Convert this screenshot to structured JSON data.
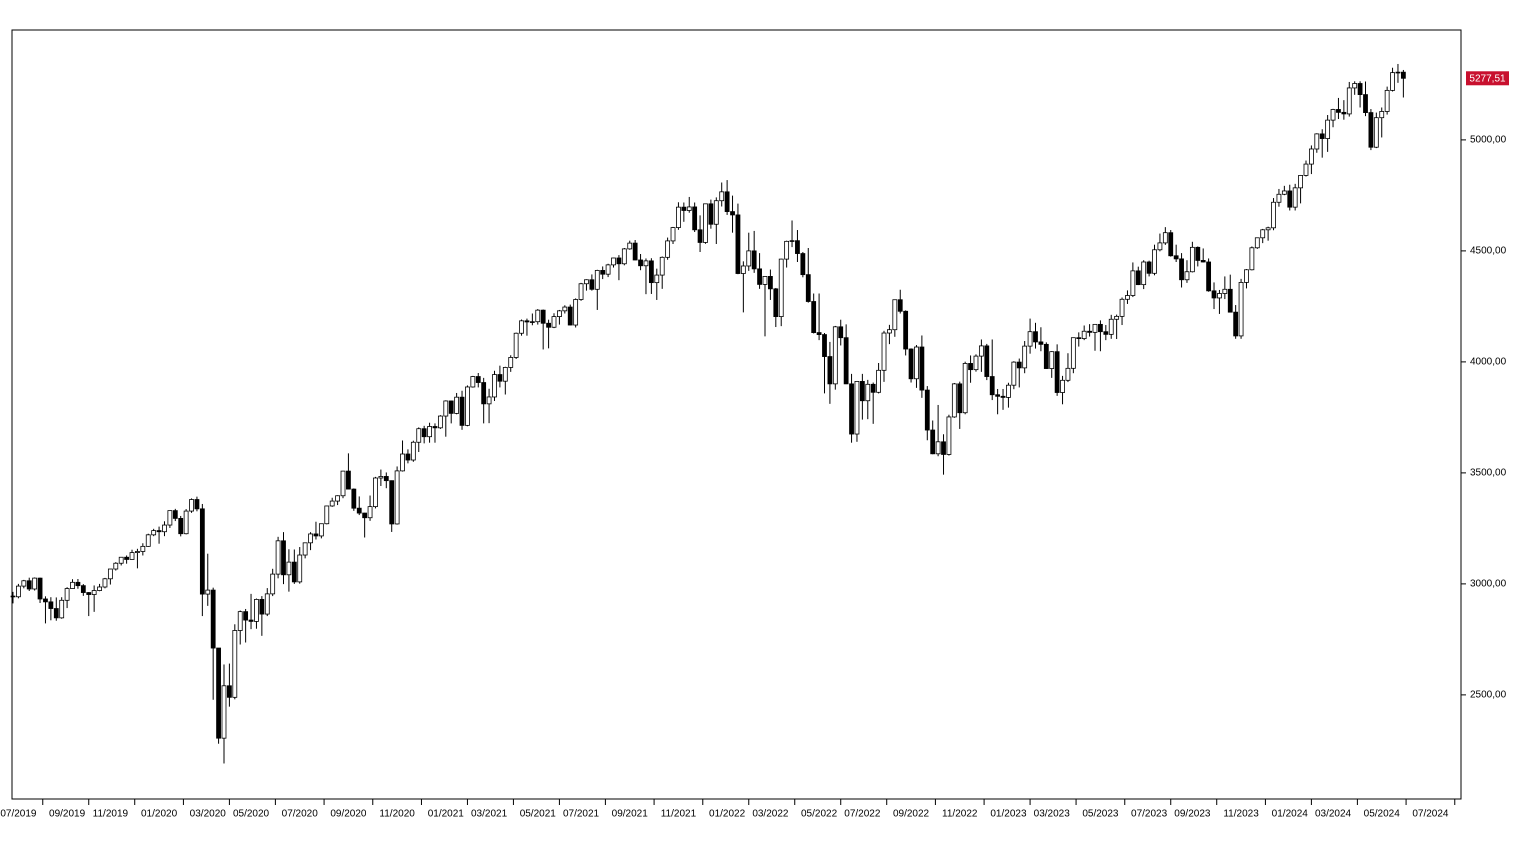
{
  "chart_data": {
    "type": "candlestick",
    "categories": [
      null,
      "07/2019",
      null,
      null,
      null,
      null,
      null,
      null,
      null,
      null,
      "09/2019",
      null,
      null,
      null,
      null,
      null,
      null,
      null,
      "11/2019",
      null,
      null,
      null,
      null,
      null,
      null,
      null,
      null,
      "01/2020",
      null,
      null,
      null,
      null,
      null,
      null,
      null,
      null,
      "03/2020",
      null,
      null,
      null,
      null,
      null,
      null,
      null,
      "05/2020",
      null,
      null,
      null,
      null,
      null,
      null,
      null,
      null,
      "07/2020",
      null,
      null,
      null,
      null,
      null,
      null,
      null,
      null,
      "09/2020",
      null,
      null,
      null,
      null,
      null,
      null,
      null,
      null,
      "11/2020",
      null,
      null,
      null,
      null,
      null,
      null,
      null,
      null,
      "01/2021",
      null,
      null,
      null,
      null,
      null,
      null,
      null,
      "03/2021",
      null,
      null,
      null,
      null,
      null,
      null,
      null,
      null,
      "05/2021",
      null,
      null,
      null,
      null,
      null,
      null,
      null,
      "07/2021",
      null,
      null,
      null,
      null,
      null,
      null,
      null,
      null,
      "09/2021",
      null,
      null,
      null,
      null,
      null,
      null,
      null,
      null,
      "11/2021",
      null,
      null,
      null,
      null,
      null,
      null,
      null,
      null,
      "01/2022",
      null,
      null,
      null,
      null,
      null,
      null,
      null,
      "03/2022",
      null,
      null,
      null,
      null,
      null,
      null,
      null,
      null,
      "05/2022",
      null,
      null,
      null,
      null,
      null,
      null,
      null,
      "07/2022",
      null,
      null,
      null,
      null,
      null,
      null,
      null,
      null,
      "09/2022",
      null,
      null,
      null,
      null,
      null,
      null,
      null,
      null,
      "11/2022",
      null,
      null,
      null,
      null,
      null,
      null,
      null,
      null,
      "01/2023",
      null,
      null,
      null,
      null,
      null,
      null,
      null,
      "03/2023",
      null,
      null,
      null,
      null,
      null,
      null,
      null,
      null,
      "05/2023",
      null,
      null,
      null,
      null,
      null,
      null,
      null,
      null,
      "07/2023",
      null,
      null,
      null,
      null,
      null,
      null,
      null,
      "09/2023",
      null,
      null,
      null,
      null,
      null,
      null,
      null,
      null,
      "11/2023",
      null,
      null,
      null,
      null,
      null,
      null,
      null,
      null,
      "01/2024",
      null,
      null,
      null,
      null,
      null,
      null,
      null,
      "03/2024",
      null,
      null,
      null,
      null,
      null,
      null,
      null,
      null,
      "05/2024",
      null,
      null,
      null,
      null
    ],
    "x_axis_end_label": "07/2024",
    "open": [
      2945,
      2942,
      2990,
      3014,
      2977,
      3026,
      2932,
      2919,
      2889,
      2847,
      2926,
      2979,
      3007,
      2992,
      2961,
      2952,
      2970,
      2986,
      3023,
      3067,
      3093,
      3120,
      3110,
      3141,
      3146,
      3169,
      3221,
      3240,
      3235,
      3265,
      3330,
      3295,
      3226,
      3328,
      3380,
      3338,
      2954,
      2972,
      2711,
      2305,
      2541,
      2489,
      2790,
      2875,
      2837,
      2831,
      2930,
      2864,
      2955,
      3044,
      3194,
      3041,
      3098,
      3009,
      3130,
      3185,
      3225,
      3216,
      3271,
      3351,
      3373,
      3397,
      3508,
      3427,
      3341,
      3319,
      3298,
      3348,
      3477,
      3484,
      3465,
      3270,
      3509,
      3585,
      3558,
      3638,
      3699,
      3663,
      3709,
      3703,
      3756,
      3824,
      3768,
      3841,
      3714,
      3887,
      3934,
      3907,
      3811,
      3842,
      3943,
      3913,
      3975,
      4020,
      4129,
      4185,
      4180,
      4181,
      4233,
      4174,
      4156,
      4204,
      4230,
      4247,
      4166,
      4281,
      4352,
      4370,
      4327,
      4412,
      4395,
      4437,
      4468,
      4442,
      4509,
      4535,
      4459,
      4433,
      4455,
      4357,
      4391,
      4471,
      4545,
      4605,
      4697,
      4682,
      4698,
      4595,
      4538,
      4712,
      4620,
      4726,
      4766,
      4677,
      4662,
      4398,
      4432,
      4500,
      4419,
      4349,
      4385,
      4329,
      4204,
      4463,
      4543,
      4546,
      4488,
      4393,
      4272,
      4132,
      4123,
      4024,
      3901,
      4158,
      4109,
      3901,
      3675,
      3912,
      3825,
      3899,
      3863,
      3962,
      4130,
      4145,
      4280,
      4228,
      4058,
      3924,
      4067,
      3873,
      3693,
      3586,
      3640,
      3583,
      3752,
      3901,
      3771,
      3993,
      3965,
      4026,
      4072,
      3934,
      3852,
      3845,
      3840,
      3895,
      3999,
      3973,
      4071,
      4136,
      4090,
      4079,
      3970,
      4046,
      3862,
      3917,
      3971,
      4109,
      4105,
      4138,
      4133,
      4169,
      4136,
      4124,
      4192,
      4205,
      4282,
      4299,
      4410,
      4348,
      4450,
      4399,
      4505,
      4536,
      4582,
      4478,
      4464,
      4370,
      4406,
      4516,
      4457,
      4450,
      4320,
      4288,
      4308,
      4327,
      4224,
      4117,
      4358,
      4415,
      4514,
      4559,
      4595,
      4604,
      4719,
      4755,
      4770,
      4697,
      4784,
      4840,
      4891,
      4959,
      5027,
      5006,
      5089,
      5137,
      5124,
      5117,
      5234,
      5254,
      5204,
      5123,
      4967,
      5100,
      5128,
      5223,
      5303,
      5305
    ],
    "high": [
      2964,
      3000,
      3018,
      3028,
      3029,
      3028,
      2944,
      2940,
      2939,
      2940,
      2985,
      3021,
      3022,
      2999,
      2963,
      2993,
      3000,
      3027,
      3067,
      3098,
      3120,
      3128,
      3154,
      3158,
      3183,
      3226,
      3248,
      3258,
      3282,
      3330,
      3338,
      3306,
      3337,
      3385,
      3393,
      3360,
      3136,
      2983,
      2711,
      2637,
      2641,
      2818,
      2880,
      2887,
      2955,
      2934,
      2945,
      2981,
      3068,
      3212,
      3233,
      3156,
      3155,
      3166,
      3186,
      3233,
      3280,
      3272,
      3352,
      3388,
      3399,
      3509,
      3588,
      3430,
      3394,
      3320,
      3398,
      3482,
      3515,
      3502,
      3466,
      3529,
      3646,
      3606,
      3645,
      3705,
      3712,
      3726,
      3723,
      3760,
      3827,
      3826,
      3860,
      3870,
      3894,
      3937,
      3950,
      3928,
      3879,
      3960,
      3983,
      3978,
      4030,
      4132,
      4191,
      4195,
      4218,
      4238,
      4236,
      4190,
      4219,
      4234,
      4255,
      4258,
      4286,
      4356,
      4372,
      4394,
      4415,
      4430,
      4442,
      4469,
      4481,
      4513,
      4546,
      4549,
      4486,
      4466,
      4467,
      4420,
      4475,
      4560,
      4608,
      4719,
      4718,
      4743,
      4718,
      4660,
      4713,
      4731,
      4741,
      4808,
      4819,
      4749,
      4713,
      4453,
      4582,
      4590,
      4490,
      4386,
      4416,
      4333,
      4465,
      4546,
      4637,
      4594,
      4495,
      4513,
      4308,
      4308,
      4130,
      4090,
      4162,
      4190,
      4169,
      3946,
      3914,
      3946,
      3919,
      3907,
      3995,
      4140,
      4167,
      4281,
      4325,
      4232,
      4061,
      4076,
      4119,
      3891,
      3736,
      3806,
      3674,
      3762,
      3905,
      3911,
      4001,
      4029,
      4034,
      4101,
      4081,
      4101,
      3878,
      3878,
      3906,
      4003,
      4015,
      4094,
      4195,
      4176,
      4156,
      4088,
      4048,
      4079,
      3937,
      4039,
      4110,
      4133,
      4164,
      4170,
      4170,
      4187,
      4166,
      4212,
      4213,
      4290,
      4322,
      4448,
      4429,
      4458,
      4456,
      4528,
      4578,
      4607,
      4594,
      4528,
      4490,
      4458,
      4541,
      4520,
      4511,
      4466,
      4358,
      4324,
      4385,
      4393,
      4256,
      4374,
      4418,
      4520,
      4560,
      4599,
      4609,
      4738,
      4779,
      4793,
      4798,
      4802,
      4842,
      4907,
      4975,
      5030,
      5048,
      5112,
      5140,
      5189,
      5179,
      5261,
      5264,
      5264,
      5263,
      5139,
      5123,
      5146,
      5240,
      5325,
      5342,
      5315
    ],
    "low": [
      2912,
      2935,
      2980,
      2968,
      2970,
      2914,
      2822,
      2836,
      2834,
      2843,
      2891,
      2979,
      2978,
      2946,
      2855,
      2874,
      2967,
      2980,
      2997,
      3060,
      3083,
      3091,
      3109,
      3070,
      3128,
      3167,
      3215,
      3181,
      3215,
      3252,
      3283,
      3214,
      3223,
      3320,
      3327,
      2855,
      2901,
      2478,
      2280,
      2191,
      2447,
      2480,
      2727,
      2736,
      2796,
      2798,
      2766,
      2855,
      2945,
      3025,
      2999,
      2965,
      3000,
      3001,
      3115,
      3152,
      3200,
      3205,
      3268,
      3347,
      3355,
      3386,
      3427,
      3329,
      3310,
      3209,
      3284,
      3340,
      3441,
      3431,
      3234,
      3267,
      3506,
      3543,
      3550,
      3594,
      3633,
      3636,
      3636,
      3698,
      3663,
      3723,
      3764,
      3694,
      3710,
      3884,
      3885,
      3723,
      3724,
      3824,
      3885,
      3853,
      3955,
      4013,
      4118,
      4118,
      4165,
      4168,
      4056,
      4061,
      4152,
      4168,
      4218,
      4164,
      4155,
      4275,
      4321,
      4321,
      4234,
      4373,
      4382,
      4425,
      4368,
      4435,
      4505,
      4458,
      4413,
      4305,
      4306,
      4279,
      4329,
      4460,
      4531,
      4595,
      4631,
      4672,
      4585,
      4495,
      4532,
      4600,
      4531,
      4700,
      4662,
      4582,
      4395,
      4223,
      4410,
      4401,
      4329,
      4115,
      4279,
      4157,
      4161,
      4425,
      4517,
      4450,
      4381,
      4267,
      4128,
      4098,
      3858,
      3811,
      3875,
      4074,
      3900,
      3636,
      3640,
      3740,
      3742,
      3721,
      3858,
      3910,
      4080,
      4113,
      4218,
      4029,
      3907,
      3883,
      3838,
      3647,
      3584,
      3575,
      3492,
      3578,
      3748,
      3698,
      3764,
      3906,
      3956,
      3955,
      3918,
      3828,
      3764,
      3784,
      3794,
      3877,
      3885,
      3949,
      4037,
      4060,
      4048,
      3968,
      3928,
      3847,
      3809,
      3909,
      3949,
      4069,
      4098,
      4114,
      4050,
      4048,
      4098,
      4104,
      4103,
      4166,
      4261,
      4292,
      4346,
      4328,
      4385,
      4390,
      4498,
      4527,
      4474,
      4450,
      4335,
      4356,
      4403,
      4430,
      4448,
      4316,
      4238,
      4216,
      4283,
      4223,
      4104,
      4104,
      4331,
      4412,
      4509,
      4535,
      4546,
      4593,
      4699,
      4751,
      4682,
      4682,
      4714,
      4835,
      4846,
      4942,
      4920,
      4946,
      5057,
      5094,
      5091,
      5105,
      5203,
      5146,
      5107,
      4954,
      4963,
      5011,
      5114,
      5218,
      5257,
      5191
    ],
    "close": [
      2942,
      2990,
      3014,
      2977,
      3026,
      2932,
      2919,
      2889,
      2847,
      2926,
      2979,
      3007,
      2992,
      2961,
      2952,
      2970,
      2986,
      3023,
      3067,
      3093,
      3120,
      3110,
      3141,
      3146,
      3169,
      3221,
      3240,
      3235,
      3265,
      3330,
      3295,
      3226,
      3328,
      3380,
      3338,
      2954,
      2972,
      2711,
      2305,
      2541,
      2489,
      2790,
      2875,
      2837,
      2831,
      2930,
      2864,
      2955,
      3044,
      3194,
      3041,
      3098,
      3009,
      3130,
      3185,
      3225,
      3216,
      3271,
      3351,
      3373,
      3397,
      3508,
      3427,
      3341,
      3319,
      3298,
      3348,
      3477,
      3484,
      3465,
      3270,
      3509,
      3585,
      3558,
      3638,
      3699,
      3663,
      3709,
      3703,
      3756,
      3824,
      3768,
      3841,
      3714,
      3887,
      3934,
      3907,
      3811,
      3842,
      3943,
      3913,
      3975,
      4020,
      4129,
      4185,
      4180,
      4181,
      4233,
      4174,
      4156,
      4204,
      4230,
      4247,
      4166,
      4281,
      4352,
      4370,
      4327,
      4412,
      4395,
      4437,
      4468,
      4442,
      4509,
      4535,
      4459,
      4433,
      4455,
      4357,
      4391,
      4471,
      4545,
      4605,
      4697,
      4682,
      4698,
      4595,
      4538,
      4712,
      4620,
      4726,
      4766,
      4677,
      4662,
      4398,
      4432,
      4500,
      4419,
      4349,
      4385,
      4329,
      4204,
      4463,
      4543,
      4546,
      4488,
      4393,
      4272,
      4132,
      4123,
      4024,
      3901,
      4158,
      4109,
      3901,
      3675,
      3912,
      3825,
      3899,
      3863,
      3962,
      4130,
      4145,
      4280,
      4228,
      4058,
      3924,
      4067,
      3873,
      3693,
      3586,
      3640,
      3583,
      3752,
      3901,
      3771,
      3993,
      3965,
      4026,
      4072,
      3934,
      3852,
      3845,
      3840,
      3895,
      3999,
      3973,
      4071,
      4136,
      4090,
      4079,
      3970,
      4046,
      3862,
      3917,
      3971,
      4109,
      4105,
      4138,
      4133,
      4169,
      4136,
      4124,
      4192,
      4205,
      4282,
      4299,
      4410,
      4348,
      4450,
      4399,
      4505,
      4536,
      4582,
      4478,
      4464,
      4370,
      4406,
      4516,
      4457,
      4450,
      4320,
      4288,
      4308,
      4327,
      4224,
      4117,
      4358,
      4415,
      4514,
      4559,
      4595,
      4604,
      4719,
      4755,
      4770,
      4697,
      4784,
      4840,
      4891,
      4959,
      5027,
      5006,
      5089,
      5137,
      5124,
      5117,
      5234,
      5254,
      5204,
      5123,
      4967,
      5100,
      5128,
      5223,
      5303,
      5305,
      5277.51
    ],
    "last_price_label": "5277,51",
    "ylim": [
      2031,
      5495
    ],
    "yticks": [
      {
        "value": 2500,
        "label": "2500,00"
      },
      {
        "value": 3000,
        "label": "3000,00"
      },
      {
        "value": 3500,
        "label": "3500,00"
      },
      {
        "value": 4000,
        "label": "4000,00"
      },
      {
        "value": 4500,
        "label": "4500,00"
      },
      {
        "value": 5000,
        "label": "5000,00"
      }
    ],
    "up_color": "#ffffff",
    "down_color": "#000000",
    "outline_color": "#000000",
    "last_price_color": "#c8102e",
    "grid": false
  }
}
